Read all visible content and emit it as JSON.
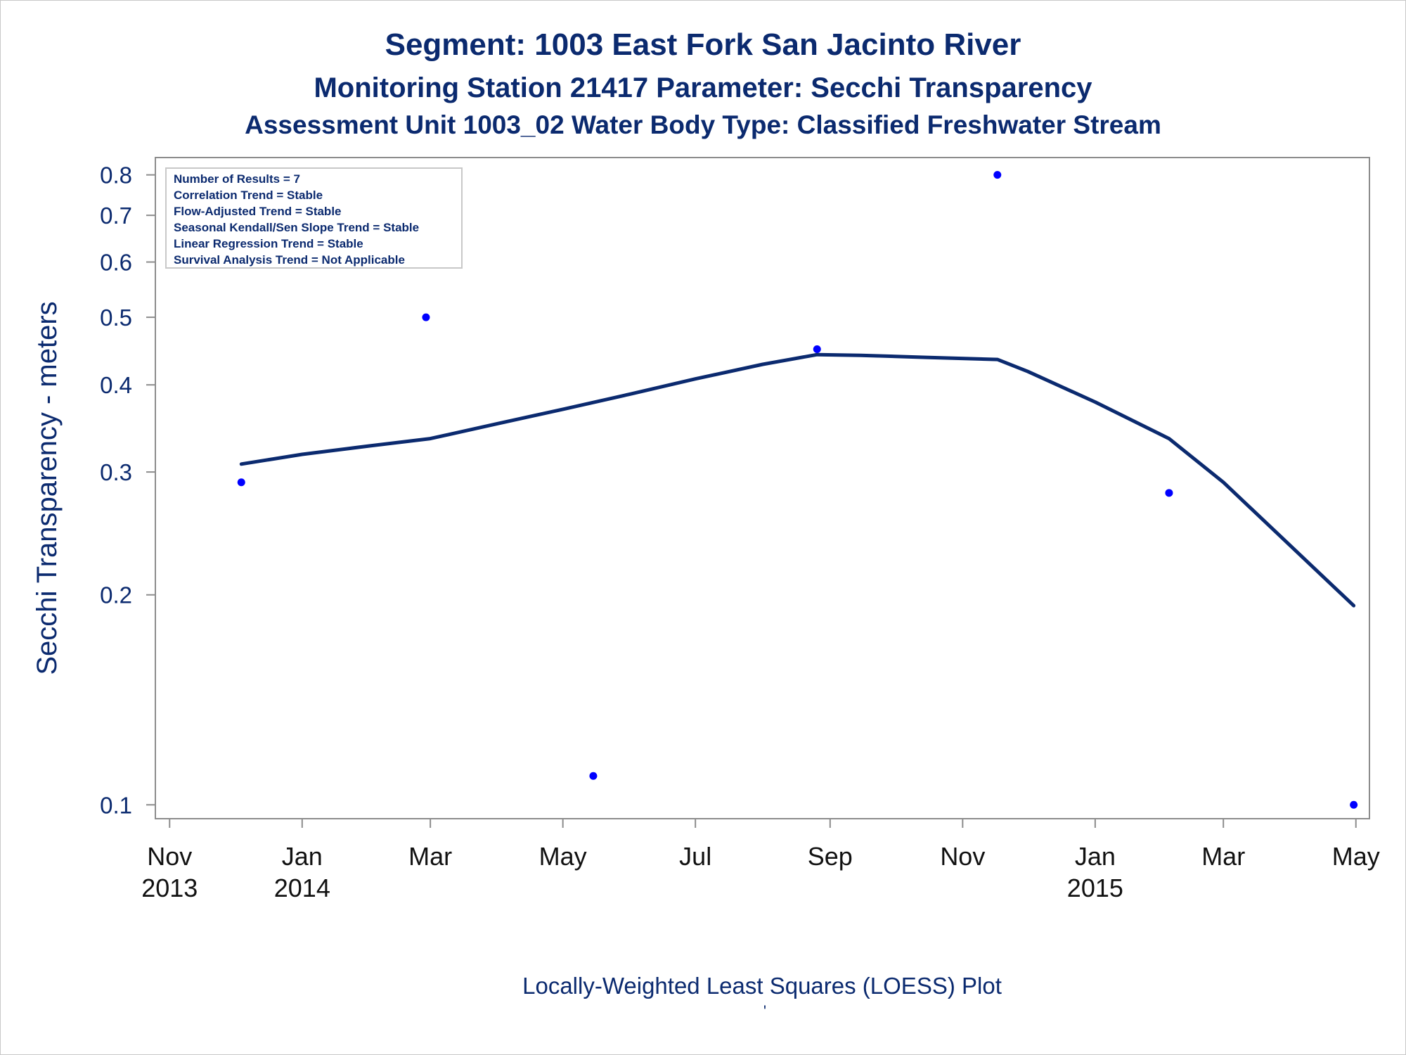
{
  "chart_data": {
    "type": "scatter",
    "title": "Segment: 1003  East Fork San Jacinto River",
    "subtitle": "Monitoring Station 21417 Parameter: Secchi Transparency",
    "subtitle2": "Assessment Unit 1003_02   Water Body Type: Classified Freshwater Stream",
    "ylabel": "Secchi Transparency - meters",
    "xlabel": "Locally-Weighted Least Squares (LOESS) Plot",
    "footnote": "'",
    "y_scale": "log",
    "ylim": [
      0.098,
      0.82
    ],
    "xlim": [
      "2013-10-29",
      "2015-05-04"
    ],
    "grid": false,
    "y_ticks": [
      0.1,
      0.2,
      0.3,
      0.4,
      0.5,
      0.6,
      0.7,
      0.8
    ],
    "y_tick_labels": [
      "0.1",
      "0.2",
      "0.3",
      "0.4",
      "0.5",
      "0.6",
      "0.7",
      "0.8"
    ],
    "x_ticks": [
      {
        "date": "2013-11-01",
        "month": "Nov",
        "year": "2013"
      },
      {
        "date": "2014-01-01",
        "month": "Jan",
        "year": "2014"
      },
      {
        "date": "2014-03-01",
        "month": "Mar",
        "year": ""
      },
      {
        "date": "2014-05-01",
        "month": "May",
        "year": ""
      },
      {
        "date": "2014-07-01",
        "month": "Jul",
        "year": ""
      },
      {
        "date": "2014-09-01",
        "month": "Sep",
        "year": ""
      },
      {
        "date": "2014-11-01",
        "month": "Nov",
        "year": ""
      },
      {
        "date": "2015-01-01",
        "month": "Jan",
        "year": "2015"
      },
      {
        "date": "2015-03-01",
        "month": "Mar",
        "year": ""
      },
      {
        "date": "2015-05-01",
        "month": "May",
        "year": ""
      }
    ],
    "series": [
      {
        "type": "scatter",
        "color": "#0000ff",
        "points": [
          {
            "x": "2013-12-04",
            "y": 0.29
          },
          {
            "x": "2014-02-27",
            "y": 0.5
          },
          {
            "x": "2014-05-15",
            "y": 0.11
          },
          {
            "x": "2014-08-26",
            "y": 0.45
          },
          {
            "x": "2014-11-17",
            "y": 0.8
          },
          {
            "x": "2015-02-04",
            "y": 0.28
          },
          {
            "x": "2015-04-30",
            "y": 0.1
          }
        ]
      },
      {
        "type": "line",
        "color": "#0b2a6f",
        "points": [
          {
            "x": "2013-12-04",
            "y": 0.308
          },
          {
            "x": "2014-01-01",
            "y": 0.318
          },
          {
            "x": "2014-02-01",
            "y": 0.327
          },
          {
            "x": "2014-03-01",
            "y": 0.335
          },
          {
            "x": "2014-04-01",
            "y": 0.352
          },
          {
            "x": "2014-05-01",
            "y": 0.369
          },
          {
            "x": "2014-06-01",
            "y": 0.388
          },
          {
            "x": "2014-07-01",
            "y": 0.408
          },
          {
            "x": "2014-08-01",
            "y": 0.428
          },
          {
            "x": "2014-08-26",
            "y": 0.442
          },
          {
            "x": "2014-09-15",
            "y": 0.441
          },
          {
            "x": "2014-10-15",
            "y": 0.438
          },
          {
            "x": "2014-11-17",
            "y": 0.435
          },
          {
            "x": "2014-12-01",
            "y": 0.418
          },
          {
            "x": "2015-01-01",
            "y": 0.378
          },
          {
            "x": "2015-02-04",
            "y": 0.335
          },
          {
            "x": "2015-03-01",
            "y": 0.29
          },
          {
            "x": "2015-04-01",
            "y": 0.235
          },
          {
            "x": "2015-04-30",
            "y": 0.193
          }
        ]
      }
    ],
    "legend": {
      "placement": "top-left",
      "lines": [
        "Number of Results = 7",
        "Correlation Trend = Stable",
        "Flow-Adjusted Trend = Stable",
        "Seasonal Kendall/Sen Slope Trend = Stable",
        "Linear Regression Trend = Stable",
        "Survival Analysis Trend = Not Applicable"
      ]
    },
    "colors": {
      "text": "#0b2a6f",
      "points": "#0000ff",
      "axis": "#8c8c8c"
    }
  }
}
